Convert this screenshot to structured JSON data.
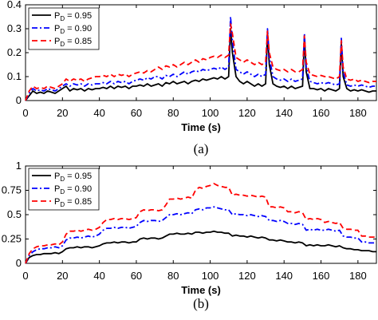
{
  "chart_data": [
    {
      "type": "line",
      "panel_label": "(a)",
      "title": "",
      "xlabel": "Time (s)",
      "ylabel": "",
      "xlim": [
        0,
        190
      ],
      "ylim": [
        0,
        0.4
      ],
      "xticks": [
        0,
        20,
        40,
        60,
        80,
        100,
        120,
        140,
        160,
        180
      ],
      "xtick_labels": [
        "0",
        "20",
        "40",
        "60",
        "80",
        "100",
        "120",
        "140",
        "160",
        "180"
      ],
      "yticks": [
        0,
        0.1,
        0.2,
        0.3,
        0.4
      ],
      "ytick_labels": [
        "0",
        "0.1",
        "0.2",
        "0.3",
        "0.4"
      ],
      "grid": false,
      "legend_position": "top-left",
      "x": [
        0,
        2,
        4,
        6,
        8,
        10,
        12,
        14,
        16,
        18,
        20,
        22,
        24,
        26,
        28,
        30,
        32,
        34,
        36,
        38,
        40,
        42,
        44,
        46,
        48,
        50,
        52,
        54,
        56,
        58,
        60,
        62,
        64,
        66,
        68,
        70,
        72,
        74,
        76,
        78,
        80,
        82,
        84,
        86,
        88,
        90,
        92,
        94,
        96,
        98,
        100,
        102,
        104,
        106,
        108,
        110,
        111,
        112,
        114,
        116,
        118,
        120,
        122,
        124,
        126,
        128,
        130,
        131,
        132,
        134,
        136,
        138,
        140,
        142,
        144,
        146,
        148,
        150,
        151,
        152,
        154,
        156,
        158,
        160,
        162,
        164,
        166,
        168,
        170,
        171,
        172,
        174,
        176,
        178,
        180,
        182,
        184,
        186,
        188,
        190
      ],
      "series": [
        {
          "name": "P_D = 0.95",
          "label_main": "P",
          "label_sub": "D",
          "label_rest": " = 0.95",
          "color": "#000000",
          "style": "solid",
          "values": [
            0.0,
            0.02,
            0.04,
            0.03,
            0.035,
            0.03,
            0.04,
            0.035,
            0.03,
            0.04,
            0.05,
            0.06,
            0.04,
            0.05,
            0.045,
            0.05,
            0.04,
            0.05,
            0.045,
            0.05,
            0.05,
            0.055,
            0.05,
            0.06,
            0.05,
            0.06,
            0.055,
            0.06,
            0.05,
            0.06,
            0.06,
            0.065,
            0.06,
            0.07,
            0.06,
            0.065,
            0.07,
            0.06,
            0.075,
            0.07,
            0.08,
            0.07,
            0.075,
            0.08,
            0.07,
            0.08,
            0.085,
            0.08,
            0.09,
            0.085,
            0.09,
            0.095,
            0.09,
            0.1,
            0.09,
            0.1,
            0.3,
            0.2,
            0.1,
            0.08,
            0.07,
            0.08,
            0.07,
            0.06,
            0.07,
            0.06,
            0.07,
            0.28,
            0.15,
            0.07,
            0.06,
            0.055,
            0.06,
            0.05,
            0.06,
            0.05,
            0.055,
            0.06,
            0.26,
            0.12,
            0.05,
            0.05,
            0.045,
            0.05,
            0.04,
            0.05,
            0.045,
            0.04,
            0.05,
            0.24,
            0.1,
            0.05,
            0.04,
            0.045,
            0.04,
            0.045,
            0.04,
            0.035,
            0.04,
            0.04
          ]
        },
        {
          "name": "P_D = 0.90",
          "label_main": "P",
          "label_sub": "D",
          "label_rest": " = 0.90",
          "color": "#0000ff",
          "style": "dashdot",
          "values": [
            0.0,
            0.03,
            0.05,
            0.04,
            0.045,
            0.04,
            0.05,
            0.045,
            0.04,
            0.05,
            0.06,
            0.07,
            0.06,
            0.07,
            0.065,
            0.07,
            0.06,
            0.07,
            0.065,
            0.07,
            0.07,
            0.075,
            0.07,
            0.08,
            0.07,
            0.08,
            0.075,
            0.08,
            0.07,
            0.08,
            0.085,
            0.09,
            0.085,
            0.095,
            0.09,
            0.1,
            0.1,
            0.09,
            0.105,
            0.1,
            0.11,
            0.1,
            0.11,
            0.12,
            0.11,
            0.12,
            0.125,
            0.12,
            0.13,
            0.125,
            0.13,
            0.135,
            0.13,
            0.14,
            0.13,
            0.14,
            0.35,
            0.25,
            0.13,
            0.12,
            0.11,
            0.12,
            0.11,
            0.1,
            0.11,
            0.1,
            0.11,
            0.3,
            0.18,
            0.1,
            0.09,
            0.085,
            0.09,
            0.08,
            0.09,
            0.08,
            0.085,
            0.09,
            0.28,
            0.14,
            0.08,
            0.075,
            0.07,
            0.075,
            0.07,
            0.075,
            0.07,
            0.065,
            0.07,
            0.26,
            0.12,
            0.065,
            0.06,
            0.065,
            0.06,
            0.065,
            0.06,
            0.055,
            0.06,
            0.06
          ]
        },
        {
          "name": "P_D = 0.85",
          "label_main": "P",
          "label_sub": "D",
          "label_rest": " = 0.85",
          "color": "#ff0000",
          "style": "dashed",
          "values": [
            0.0,
            0.04,
            0.06,
            0.05,
            0.055,
            0.05,
            0.06,
            0.055,
            0.05,
            0.06,
            0.07,
            0.09,
            0.08,
            0.09,
            0.085,
            0.09,
            0.08,
            0.09,
            0.095,
            0.1,
            0.1,
            0.105,
            0.1,
            0.11,
            0.1,
            0.11,
            0.105,
            0.11,
            0.1,
            0.11,
            0.115,
            0.12,
            0.115,
            0.125,
            0.12,
            0.13,
            0.14,
            0.13,
            0.145,
            0.14,
            0.15,
            0.14,
            0.15,
            0.16,
            0.15,
            0.16,
            0.17,
            0.16,
            0.175,
            0.17,
            0.18,
            0.185,
            0.18,
            0.19,
            0.18,
            0.19,
            0.32,
            0.28,
            0.18,
            0.17,
            0.16,
            0.17,
            0.16,
            0.15,
            0.16,
            0.15,
            0.16,
            0.29,
            0.2,
            0.14,
            0.13,
            0.125,
            0.13,
            0.12,
            0.13,
            0.12,
            0.12,
            0.13,
            0.27,
            0.16,
            0.11,
            0.105,
            0.1,
            0.105,
            0.1,
            0.1,
            0.095,
            0.09,
            0.1,
            0.25,
            0.14,
            0.09,
            0.085,
            0.09,
            0.08,
            0.085,
            0.08,
            0.075,
            0.08,
            0.08
          ]
        }
      ]
    },
    {
      "type": "line",
      "panel_label": "(b)",
      "title": "",
      "xlabel": "Time (s)",
      "ylabel": "",
      "xlim": [
        0,
        190
      ],
      "ylim": [
        0,
        1.0
      ],
      "xticks": [
        0,
        20,
        40,
        60,
        80,
        100,
        120,
        140,
        160,
        180
      ],
      "xtick_labels": [
        "0",
        "20",
        "40",
        "60",
        "80",
        "100",
        "120",
        "140",
        "160",
        "180"
      ],
      "yticks": [
        0,
        0.25,
        0.5,
        0.75,
        1.0
      ],
      "ytick_labels": [
        "0",
        "0.25",
        "0.5",
        "0.75",
        "1"
      ],
      "grid": false,
      "legend_position": "top-left",
      "x": [
        0,
        2,
        4,
        6,
        8,
        10,
        12,
        14,
        16,
        18,
        20,
        22,
        24,
        26,
        28,
        30,
        32,
        34,
        36,
        38,
        40,
        42,
        44,
        46,
        48,
        50,
        52,
        54,
        56,
        58,
        60,
        62,
        64,
        66,
        68,
        70,
        72,
        74,
        76,
        78,
        80,
        82,
        84,
        86,
        88,
        90,
        92,
        94,
        96,
        98,
        100,
        102,
        104,
        106,
        108,
        110,
        112,
        114,
        116,
        118,
        120,
        122,
        124,
        126,
        128,
        130,
        132,
        134,
        136,
        138,
        140,
        142,
        144,
        146,
        148,
        150,
        152,
        154,
        156,
        158,
        160,
        162,
        164,
        166,
        168,
        170,
        172,
        174,
        176,
        178,
        180,
        182,
        184,
        186,
        188,
        190
      ],
      "series": [
        {
          "name": "P_D = 0.95",
          "label_main": "P",
          "label_sub": "D",
          "label_rest": " = 0.95",
          "color": "#000000",
          "style": "solid",
          "values": [
            0.0,
            0.06,
            0.08,
            0.09,
            0.09,
            0.1,
            0.1,
            0.1,
            0.11,
            0.1,
            0.12,
            0.15,
            0.16,
            0.16,
            0.17,
            0.16,
            0.17,
            0.17,
            0.16,
            0.17,
            0.18,
            0.2,
            0.21,
            0.21,
            0.22,
            0.21,
            0.22,
            0.22,
            0.21,
            0.22,
            0.22,
            0.25,
            0.26,
            0.25,
            0.26,
            0.26,
            0.25,
            0.26,
            0.28,
            0.3,
            0.3,
            0.31,
            0.3,
            0.3,
            0.31,
            0.3,
            0.32,
            0.32,
            0.31,
            0.32,
            0.32,
            0.33,
            0.32,
            0.32,
            0.31,
            0.31,
            0.28,
            0.29,
            0.28,
            0.28,
            0.27,
            0.28,
            0.27,
            0.26,
            0.27,
            0.26,
            0.24,
            0.24,
            0.23,
            0.24,
            0.23,
            0.22,
            0.22,
            0.21,
            0.22,
            0.21,
            0.18,
            0.19,
            0.18,
            0.19,
            0.18,
            0.18,
            0.19,
            0.18,
            0.17,
            0.18,
            0.16,
            0.15,
            0.15,
            0.14,
            0.14,
            0.13,
            0.13,
            0.13,
            0.12,
            0.12
          ]
        },
        {
          "name": "P_D = 0.90",
          "label_main": "P",
          "label_sub": "D",
          "label_rest": " = 0.90",
          "color": "#0000ff",
          "style": "dashdot",
          "values": [
            0.0,
            0.08,
            0.12,
            0.14,
            0.15,
            0.15,
            0.16,
            0.16,
            0.17,
            0.16,
            0.18,
            0.24,
            0.26,
            0.26,
            0.27,
            0.26,
            0.27,
            0.28,
            0.27,
            0.28,
            0.3,
            0.34,
            0.36,
            0.36,
            0.37,
            0.36,
            0.37,
            0.37,
            0.36,
            0.37,
            0.38,
            0.42,
            0.44,
            0.43,
            0.44,
            0.44,
            0.43,
            0.44,
            0.47,
            0.5,
            0.5,
            0.51,
            0.5,
            0.51,
            0.52,
            0.51,
            0.55,
            0.56,
            0.55,
            0.57,
            0.57,
            0.58,
            0.57,
            0.56,
            0.55,
            0.55,
            0.5,
            0.51,
            0.5,
            0.5,
            0.49,
            0.5,
            0.49,
            0.48,
            0.49,
            0.48,
            0.44,
            0.44,
            0.43,
            0.44,
            0.43,
            0.41,
            0.41,
            0.4,
            0.41,
            0.4,
            0.34,
            0.35,
            0.34,
            0.35,
            0.34,
            0.34,
            0.35,
            0.34,
            0.33,
            0.34,
            0.28,
            0.27,
            0.27,
            0.26,
            0.26,
            0.22,
            0.22,
            0.21,
            0.21,
            0.21
          ]
        },
        {
          "name": "P_D = 0.85",
          "label_main": "P",
          "label_sub": "D",
          "label_rest": " = 0.85",
          "color": "#ff0000",
          "style": "dashed",
          "values": [
            0.0,
            0.1,
            0.15,
            0.17,
            0.18,
            0.18,
            0.19,
            0.19,
            0.2,
            0.19,
            0.22,
            0.3,
            0.33,
            0.33,
            0.34,
            0.33,
            0.34,
            0.35,
            0.34,
            0.35,
            0.37,
            0.42,
            0.45,
            0.45,
            0.46,
            0.45,
            0.46,
            0.46,
            0.45,
            0.46,
            0.47,
            0.53,
            0.55,
            0.54,
            0.55,
            0.55,
            0.54,
            0.55,
            0.6,
            0.66,
            0.66,
            0.67,
            0.66,
            0.67,
            0.68,
            0.67,
            0.75,
            0.78,
            0.77,
            0.79,
            0.8,
            0.82,
            0.8,
            0.79,
            0.78,
            0.78,
            0.7,
            0.71,
            0.7,
            0.7,
            0.69,
            0.7,
            0.69,
            0.68,
            0.69,
            0.68,
            0.58,
            0.58,
            0.57,
            0.58,
            0.57,
            0.53,
            0.53,
            0.52,
            0.53,
            0.52,
            0.45,
            0.46,
            0.45,
            0.46,
            0.45,
            0.42,
            0.43,
            0.42,
            0.41,
            0.42,
            0.36,
            0.35,
            0.35,
            0.34,
            0.34,
            0.28,
            0.28,
            0.27,
            0.27,
            0.27
          ]
        }
      ]
    }
  ]
}
